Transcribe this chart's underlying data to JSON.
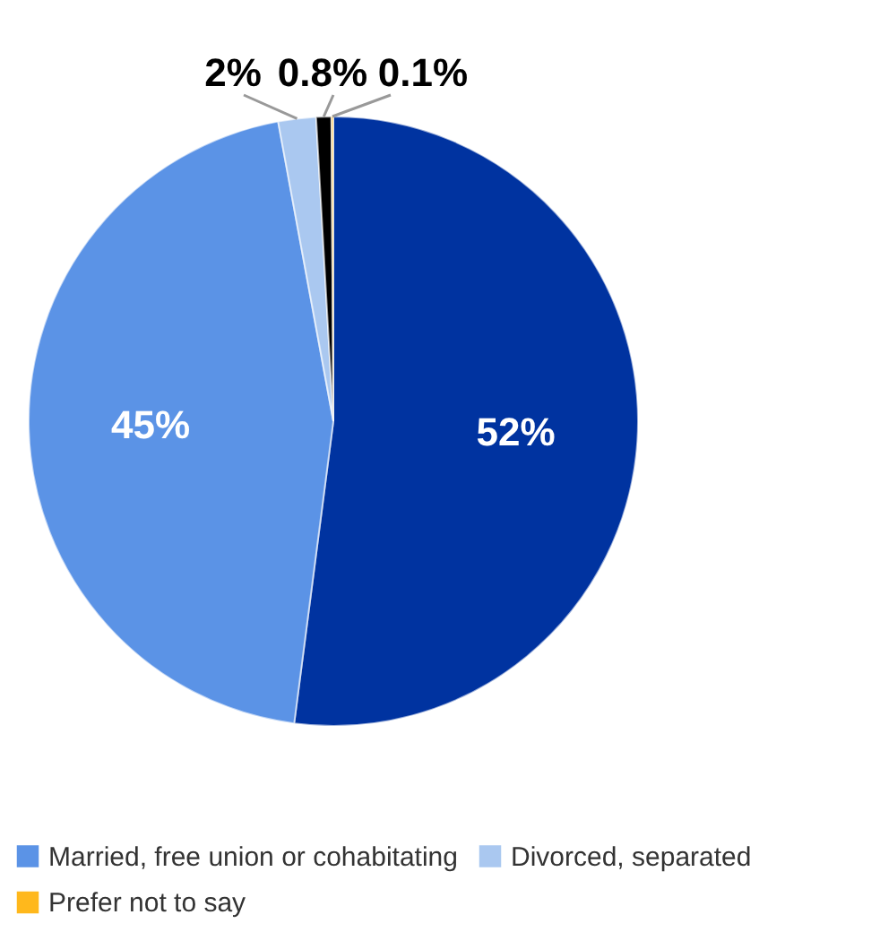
{
  "chart_data": {
    "type": "pie",
    "categories": [
      null,
      "Married, free union or cohabitating",
      "Divorced, separated",
      null,
      "Prefer not to say"
    ],
    "values": [
      52,
      45,
      2,
      0.8,
      0.1
    ],
    "colors": [
      "#0033a0",
      "#5b93e6",
      "#aac8f0",
      "#000000",
      "#ffb81c"
    ],
    "value_labels": [
      "52%",
      "45%",
      "2%",
      "0.8%",
      "0.1%"
    ],
    "legend": "bottom"
  }
}
